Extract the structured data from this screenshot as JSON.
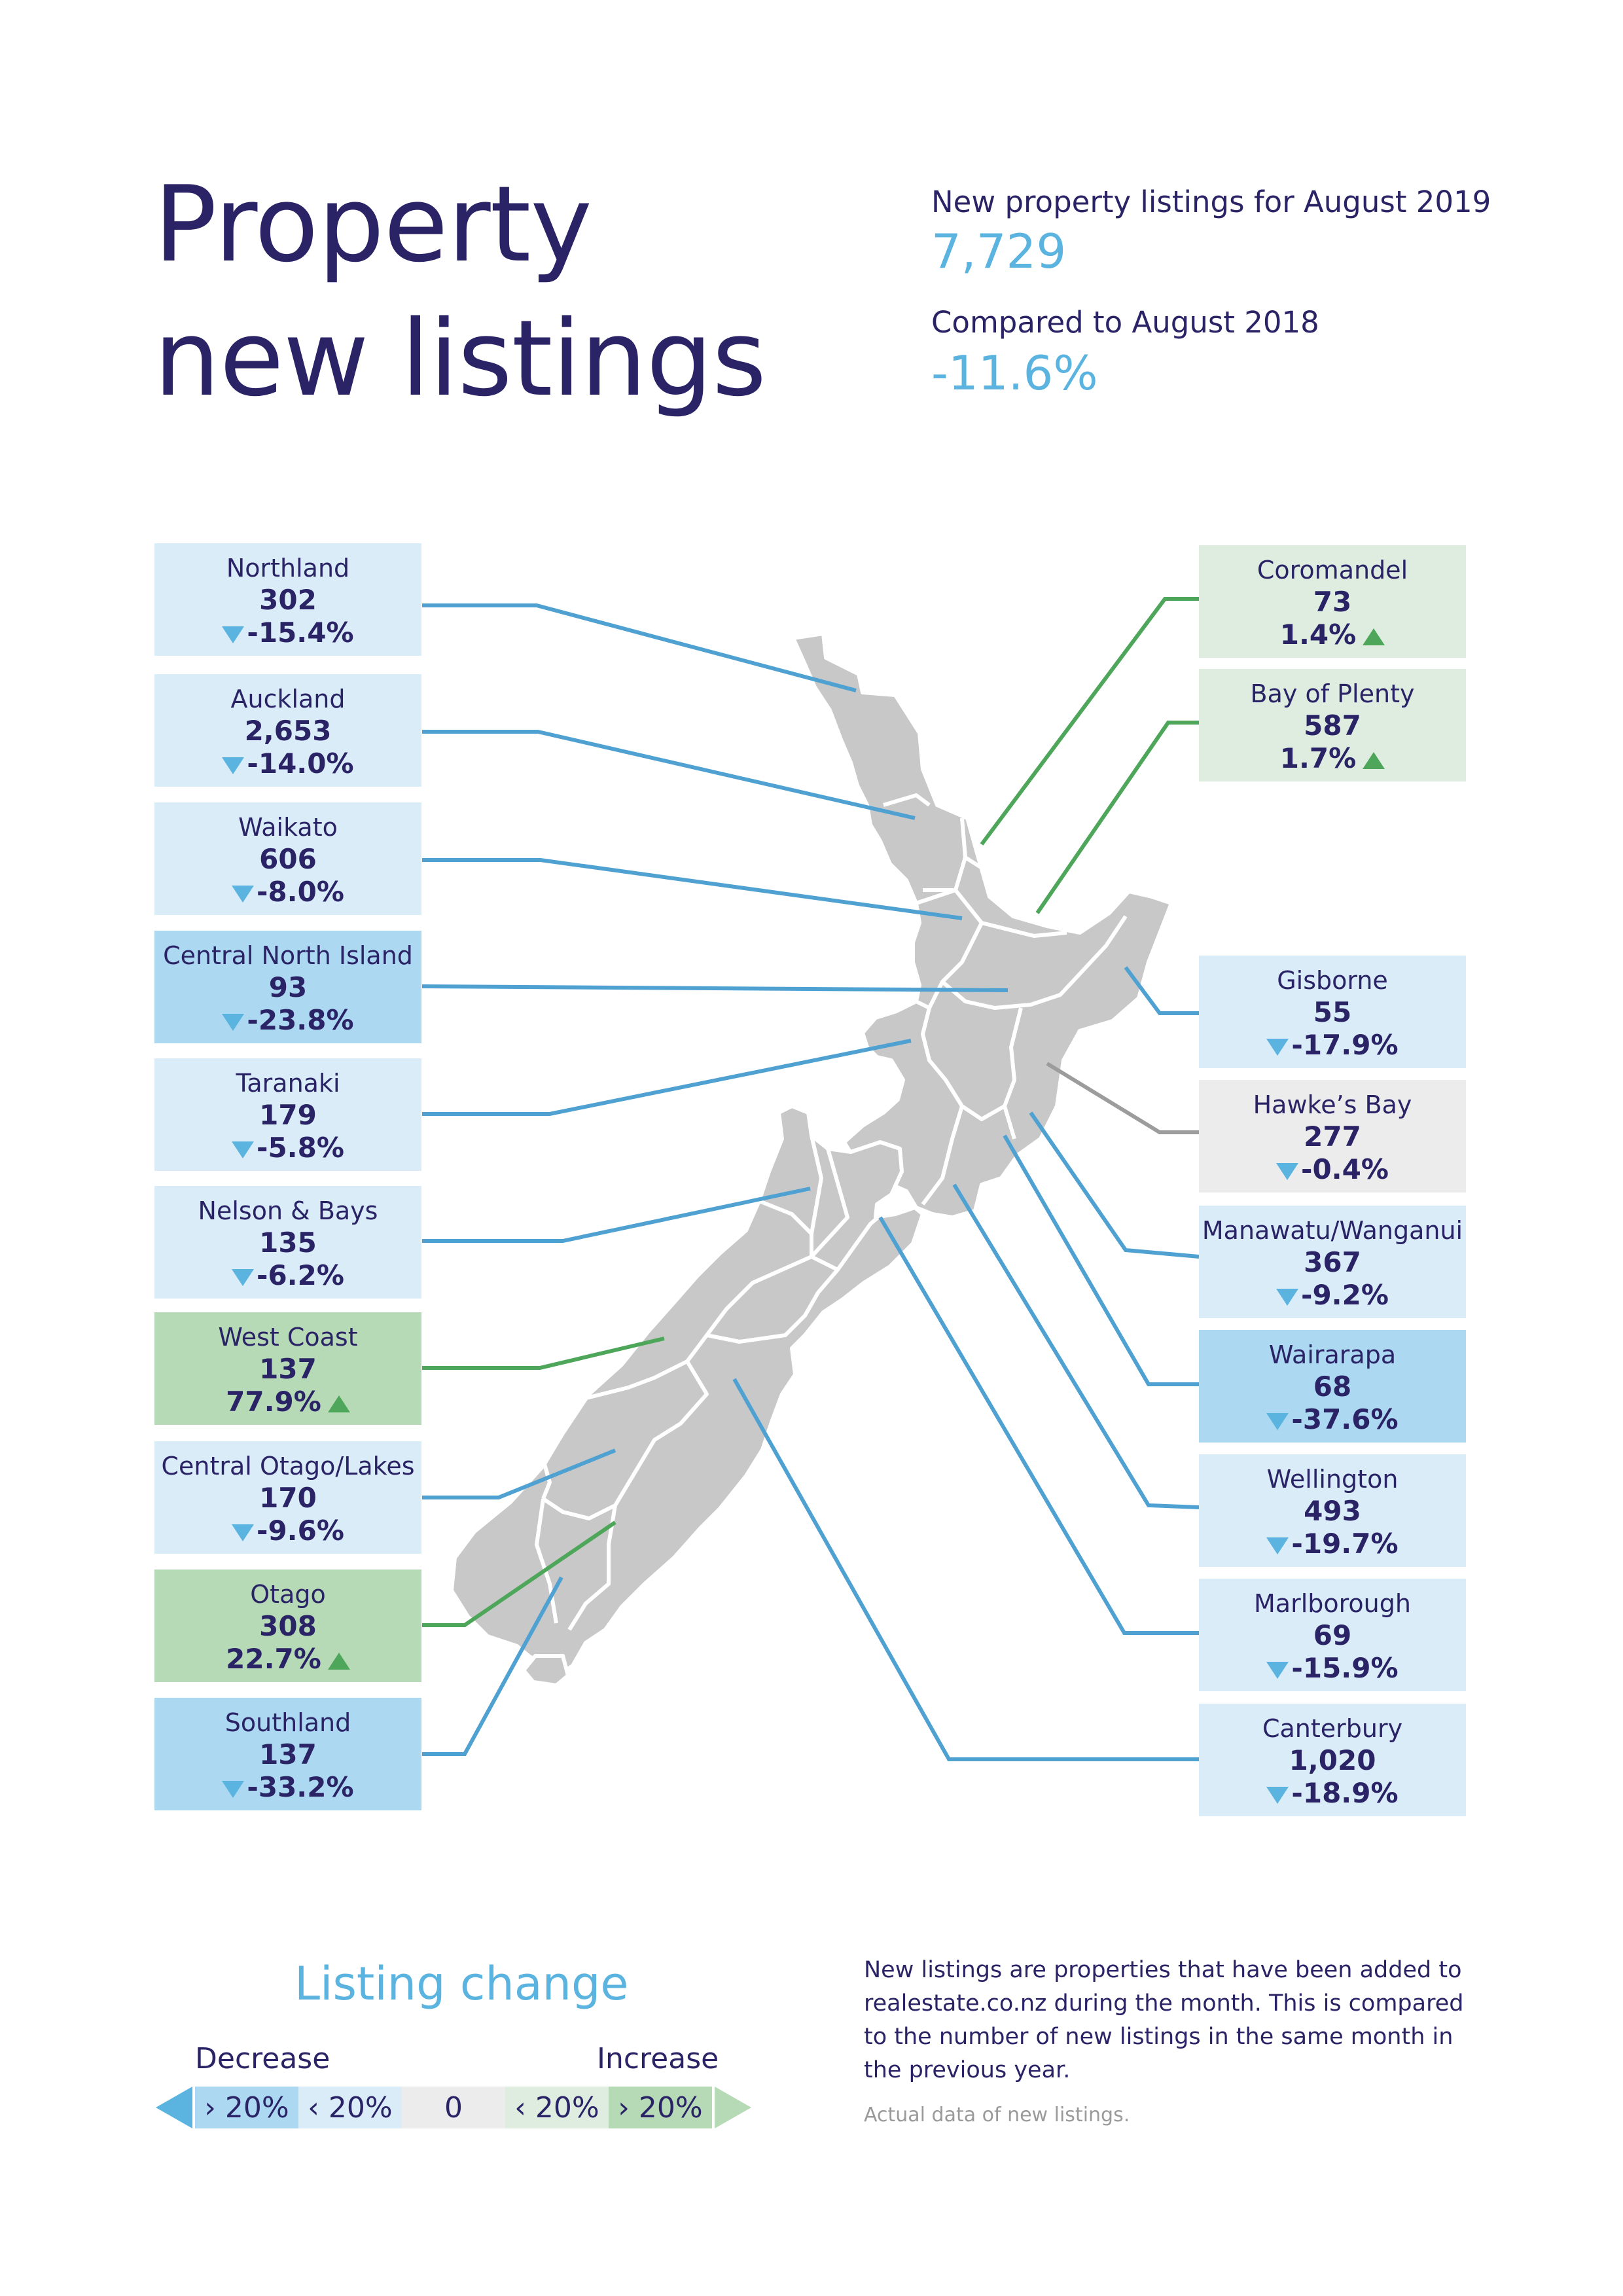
{
  "title": {
    "line1": "Property",
    "line2": "new listings"
  },
  "summary": {
    "listings_label": "New property listings for August 2019",
    "listings_value": "7,729",
    "compare_label": "Compared to August 2018",
    "compare_value": "-11.6%"
  },
  "colors": {
    "strong_decrease": "#acd8f1",
    "decrease": "#d9ecf8",
    "neutral": "#ececec",
    "increase": "#deede0",
    "strong_increase": "#b6d9b6",
    "line_blue": "#4fa1d2",
    "line_green": "#4ea65a",
    "line_grey": "#9c9c9c",
    "map_fill": "#c8c8c8"
  },
  "regions_left": [
    {
      "name": "Northland",
      "value": "302",
      "change": "-15.4%",
      "trend": "down",
      "band": "decrease"
    },
    {
      "name": "Auckland",
      "value": "2,653",
      "change": "-14.0%",
      "trend": "down",
      "band": "decrease"
    },
    {
      "name": "Waikato",
      "value": "606",
      "change": "-8.0%",
      "trend": "down",
      "band": "decrease"
    },
    {
      "name": "Central North Island",
      "value": "93",
      "change": "-23.8%",
      "trend": "down",
      "band": "strong_decrease"
    },
    {
      "name": "Taranaki",
      "value": "179",
      "change": "-5.8%",
      "trend": "down",
      "band": "decrease"
    },
    {
      "name": "Nelson & Bays",
      "value": "135",
      "change": "-6.2%",
      "trend": "down",
      "band": "decrease"
    },
    {
      "name": "West Coast",
      "value": "137",
      "change": "77.9%",
      "trend": "up",
      "band": "strong_increase"
    },
    {
      "name": "Central Otago/Lakes",
      "value": "170",
      "change": "-9.6%",
      "trend": "down",
      "band": "decrease"
    },
    {
      "name": "Otago",
      "value": "308",
      "change": "22.7%",
      "trend": "up",
      "band": "strong_increase"
    },
    {
      "name": "Southland",
      "value": "137",
      "change": "-33.2%",
      "trend": "down",
      "band": "strong_decrease"
    }
  ],
  "regions_right": [
    {
      "name": "Coromandel",
      "value": "73",
      "change": "1.4%",
      "trend": "up",
      "band": "increase"
    },
    {
      "name": "Bay of Plenty",
      "value": "587",
      "change": "1.7%",
      "trend": "up",
      "band": "increase"
    },
    {
      "name": "Gisborne",
      "value": "55",
      "change": "-17.9%",
      "trend": "down",
      "band": "decrease"
    },
    {
      "name": "Hawke’s Bay",
      "value": "277",
      "change": "-0.4%",
      "trend": "down",
      "band": "neutral"
    },
    {
      "name": "Manawatu/Wanganui",
      "value": "367",
      "change": "-9.2%",
      "trend": "down",
      "band": "decrease"
    },
    {
      "name": "Wairarapa",
      "value": "68",
      "change": "-37.6%",
      "trend": "down",
      "band": "strong_decrease"
    },
    {
      "name": "Wellington",
      "value": "493",
      "change": "-19.7%",
      "trend": "down",
      "band": "decrease"
    },
    {
      "name": "Marlborough",
      "value": "69",
      "change": "-15.9%",
      "trend": "down",
      "band": "decrease"
    },
    {
      "name": "Canterbury",
      "value": "1,020",
      "change": "-18.9%",
      "trend": "down",
      "band": "decrease"
    }
  ],
  "legend": {
    "title": "Listing change",
    "decrease_label": "Decrease",
    "increase_label": "Increase",
    "items": [
      "› 20%",
      "‹ 20%",
      "0",
      "‹ 20%",
      "› 20%"
    ]
  },
  "notes": {
    "main": "New listings are properties that have been added to realestate.co.nz during the month. This is compared to the number of new listings in the same month in the previous year.",
    "footnote": "Actual data of new listings."
  }
}
